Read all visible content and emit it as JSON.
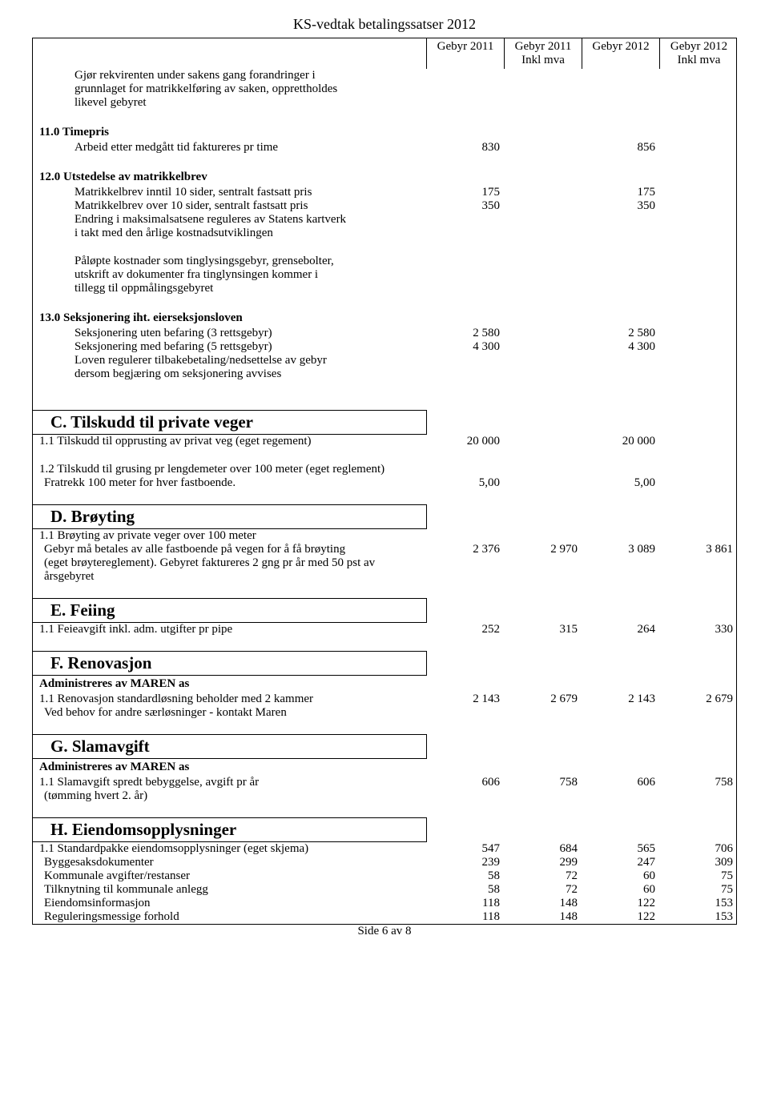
{
  "doc": {
    "title": "KS-vedtak betalingssatser 2012",
    "footer": "Side 6 av 8"
  },
  "header": {
    "col1": {
      "t": "Gebyr 2011",
      "s": ""
    },
    "col2": {
      "t": "Gebyr 2011",
      "s": "Inkl mva"
    },
    "col3": {
      "t": "Gebyr 2012",
      "s": ""
    },
    "col4": {
      "t": "Gebyr 2012",
      "s": "Inkl mva"
    }
  },
  "intro": {
    "l1": "Gjør rekvirenten under sakens gang forandringer i",
    "l2": "grunnlaget for matrikkelføring av saken, opprettholdes",
    "l3": "likevel gebyret"
  },
  "s11": {
    "title": "11.0 Timepris",
    "r1": {
      "d": "Arbeid etter medgått tid faktureres  pr time",
      "c1": "830",
      "c3": "856"
    }
  },
  "s12": {
    "title": "12.0 Utstedelse av matrikkelbrev",
    "r1": {
      "d": "Matrikkelbrev inntil 10 sider, sentralt fastsatt pris",
      "c1": "175",
      "c3": "175"
    },
    "r2": {
      "d": "Matrikkelbrev over 10 sider, sentralt fastsatt pris",
      "c1": "350",
      "c3": "350"
    },
    "r3": {
      "d": "Endring i maksimalsatsene reguleres av Statens kartverk"
    },
    "r4": {
      "d": "i takt med den årlige kostnadsutviklingen"
    },
    "r5": {
      "d": "Påløpte kostnader som tinglysingsgebyr, grensebolter,"
    },
    "r6": {
      "d": "utskrift av dokumenter fra tinglynsingen kommer i"
    },
    "r7": {
      "d": "tillegg til oppmålingsgebyret"
    }
  },
  "s13": {
    "title": "13.0 Seksjonering iht. eierseksjonsloven",
    "r1": {
      "d": "Seksjonering uten befaring (3 rettsgebyr)",
      "c1": "2 580",
      "c3": "2 580"
    },
    "r2": {
      "d": "Seksjonering med befaring (5 rettsgebyr)",
      "c1": "4 300",
      "c3": "4 300"
    },
    "r3": {
      "d": "Loven regulerer tilbakebetaling/nedsettelse av gebyr"
    },
    "r4": {
      "d": "dersom begjæring om seksjonering avvises"
    }
  },
  "sC": {
    "title": "C. Tilskudd til private veger",
    "r1": {
      "d": "1.1 Tilskudd til opprusting av privat veg  (eget regement)",
      "c1": "20 000",
      "c3": "20 000"
    },
    "r2a": "1.2 Tilskudd til grusing pr lengdemeter over 100 meter (eget reglement)",
    "r2b": {
      "d": "Fratrekk 100 meter for hver fastboende.",
      "c1": "5,00",
      "c3": "5,00"
    }
  },
  "sD": {
    "title": "D. Brøyting",
    "r1a": "1.1 Brøyting av private veger over 100 meter",
    "r1b": {
      "d": "Gebyr må betales av alle fastboende på vegen for å få brøyting",
      "c1": "2 376",
      "c2": "2 970",
      "c3": "3 089",
      "c4": "3 861"
    },
    "r1c": "(eget brøytereglement). Gebyret faktureres 2 gng pr år med 50 pst av årsgebyret"
  },
  "sE": {
    "title": "E. Feiing",
    "r1": {
      "d": "1.1 Feieavgift inkl. adm. utgifter pr pipe",
      "c1": "252",
      "c2": "315",
      "c3": "264",
      "c4": "330"
    }
  },
  "sF": {
    "title": "F. Renovasjon",
    "sub": "Administreres av MAREN as",
    "r1": {
      "d": "1.1 Renovasjon standardløsning beholder med 2 kammer",
      "c1": "2 143",
      "c2": "2 679",
      "c3": "2 143",
      "c4": "2 679"
    },
    "r2": "Ved behov for andre særløsninger - kontakt Maren"
  },
  "sG": {
    "title": "G. Slamavgift",
    "sub": "Administreres av MAREN as",
    "r1": {
      "d": "1.1 Slamavgift spredt bebyggelse, avgift pr år",
      "c1": "606",
      "c2": "758",
      "c3": "606",
      "c4": "758"
    },
    "r2": "(tømming hvert 2. år)"
  },
  "sH": {
    "title": "H. Eiendomsopplysninger",
    "r1": {
      "d": "1.1 Standardpakke eiendomsopplysninger       (eget skjema)",
      "c1": "547",
      "c2": "684",
      "c3": "565",
      "c4": "706"
    },
    "r2": {
      "d": "Byggesaksdokumenter",
      "c1": "239",
      "c2": "299",
      "c3": "247",
      "c4": "309"
    },
    "r3": {
      "d": "Kommunale avgifter/restanser",
      "c1": "58",
      "c2": "72",
      "c3": "60",
      "c4": "75"
    },
    "r4": {
      "d": "Tilknytning til kommunale anlegg",
      "c1": "58",
      "c2": "72",
      "c3": "60",
      "c4": "75"
    },
    "r5": {
      "d": "Eiendomsinformasjon",
      "c1": "118",
      "c2": "148",
      "c3": "122",
      "c4": "153"
    },
    "r6": {
      "d": "Reguleringsmessige forhold",
      "c1": "118",
      "c2": "148",
      "c3": "122",
      "c4": "153"
    }
  }
}
